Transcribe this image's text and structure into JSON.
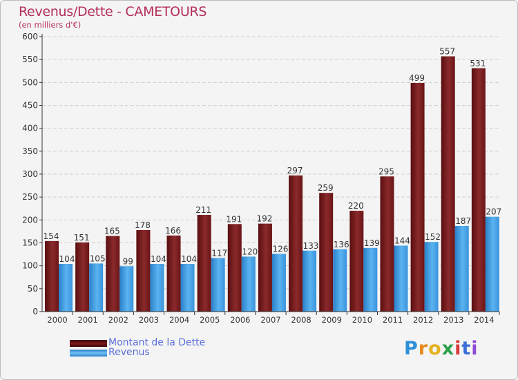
{
  "title": "Revenus/Dette - CAMETOURS",
  "subtitle": "(en milliers d'€)",
  "legend": [
    {
      "label": "Montant de la Dette",
      "color": "#7a1a1c"
    },
    {
      "label": "Revenus",
      "color": "#3d9ee6"
    }
  ],
  "logo": {
    "letters": [
      "P",
      "r",
      "o",
      "x",
      "i",
      "t",
      "i"
    ],
    "colors": [
      "#2f8fd8",
      "#e58a1f",
      "#e5b11f",
      "#2c9f4a",
      "#d83a3a",
      "#3a6fd8",
      "#8f4ad8"
    ]
  },
  "chart_data": {
    "type": "bar",
    "title": "Revenus/Dette - CAMETOURS",
    "ylabel": "(en milliers d'€)",
    "xlabel": "",
    "categories": [
      "2000",
      "2001",
      "2002",
      "2003",
      "2004",
      "2005",
      "2006",
      "2007",
      "2008",
      "2009",
      "2010",
      "2011",
      "2012",
      "2013",
      "2014"
    ],
    "series": [
      {
        "name": "Montant de la Dette",
        "color": "#7a1a1c",
        "values": [
          154,
          151,
          165,
          178,
          166,
          211,
          191,
          192,
          297,
          259,
          220,
          295,
          499,
          557,
          531
        ]
      },
      {
        "name": "Revenus",
        "color": "#3d9ee6",
        "values": [
          104,
          105,
          99,
          104,
          104,
          117,
          120,
          126,
          133,
          136,
          139,
          144,
          152,
          187,
          207
        ]
      }
    ],
    "ylim": [
      0,
      600
    ],
    "yticks": [
      0,
      50,
      100,
      150,
      200,
      250,
      300,
      350,
      400,
      450,
      500,
      550,
      600
    ],
    "grid": true,
    "legend_position": "bottom-left"
  }
}
